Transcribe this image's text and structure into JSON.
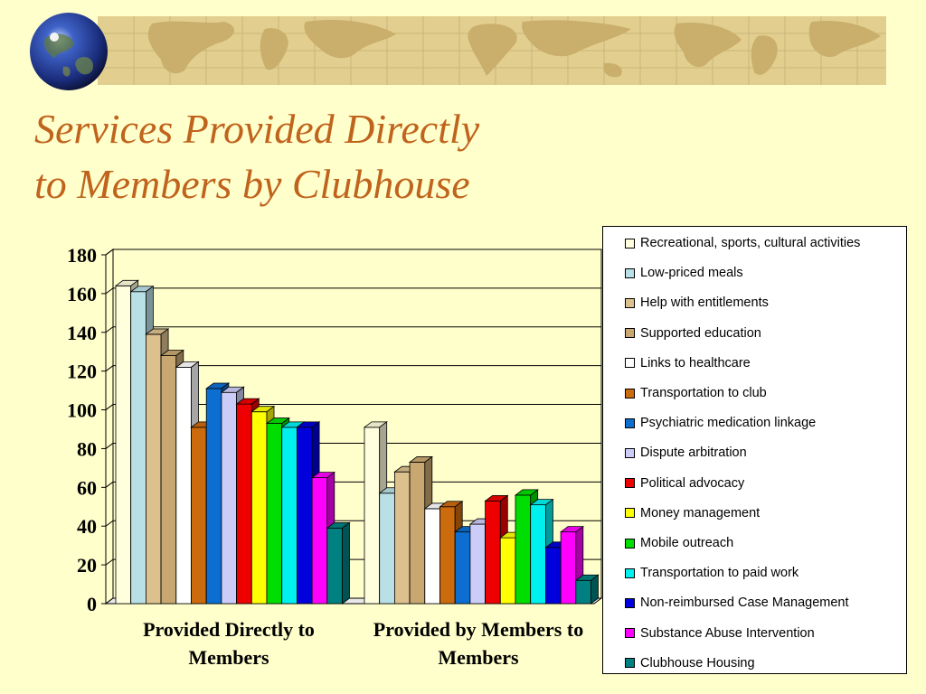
{
  "title": {
    "line1": "Services Provided Directly",
    "line2": "to Members by Clubhouse"
  },
  "chart_data": {
    "type": "bar",
    "categories": [
      "Provided Directly to Members",
      "Provided by Members to Members"
    ],
    "category_label_lines": [
      [
        "Provided Directly to",
        "Members"
      ],
      [
        "Provided by Members to",
        "Members"
      ]
    ],
    "ylim": [
      0,
      180
    ],
    "yticks": [
      0,
      20,
      40,
      60,
      80,
      100,
      120,
      140,
      160,
      180
    ],
    "grid": true,
    "legend_position": "right",
    "series": [
      {
        "name": "Recreational, sports, cultural activities",
        "color": "#ffffdd",
        "values": [
          164,
          91
        ]
      },
      {
        "name": "Low-priced meals",
        "color": "#b8e0e6",
        "values": [
          161,
          57
        ]
      },
      {
        "name": "Help with entitlements",
        "color": "#dcc08e",
        "values": [
          139,
          68
        ]
      },
      {
        "name": "Supported education",
        "color": "#c8a870",
        "values": [
          128,
          73
        ]
      },
      {
        "name": "Links to healthcare",
        "color": "#ffffff",
        "values": [
          122,
          49
        ]
      },
      {
        "name": "Transportation to club",
        "color": "#cc6a0e",
        "values": [
          91,
          50
        ]
      },
      {
        "name": "Psychiatric medication linkage",
        "color": "#0c6ed0",
        "values": [
          111,
          37
        ]
      },
      {
        "name": "Dispute arbitration",
        "color": "#ccccf8",
        "values": [
          109,
          41
        ]
      },
      {
        "name": "Political advocacy",
        "color": "#ee0000",
        "values": [
          103,
          53
        ]
      },
      {
        "name": "Money management",
        "color": "#ffff00",
        "values": [
          99,
          34
        ]
      },
      {
        "name": "Mobile outreach",
        "color": "#00dd00",
        "values": [
          93,
          56
        ]
      },
      {
        "name": "Transportation to paid work",
        "color": "#00f0f0",
        "values": [
          91,
          51
        ]
      },
      {
        "name": "Non-reimbursed Case Management",
        "color": "#0000dd",
        "values": [
          91,
          29
        ]
      },
      {
        "name": "Substance Abuse Intervention",
        "color": "#ff00ff",
        "values": [
          65,
          37
        ]
      },
      {
        "name": "Clubhouse Housing",
        "color": "#008080",
        "values": [
          39,
          12
        ]
      }
    ]
  }
}
